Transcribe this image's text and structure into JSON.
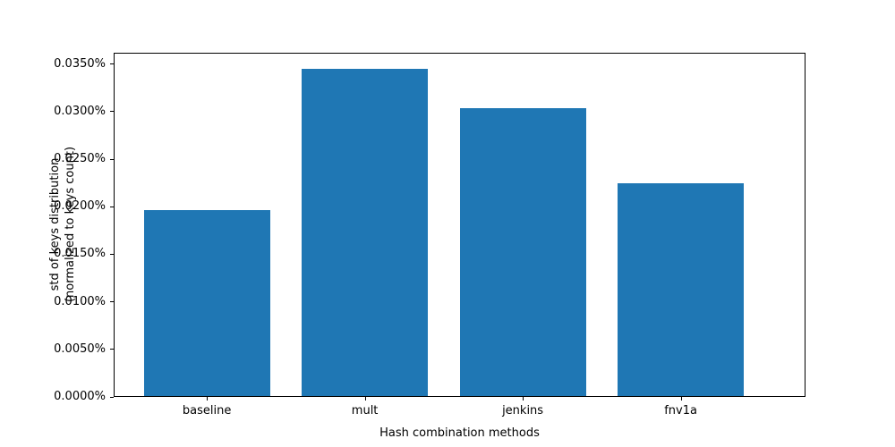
{
  "chart_data": {
    "type": "bar",
    "title": "",
    "categories": [
      "baseline",
      "mult",
      "jenkins",
      "fnv1a"
    ],
    "values": [
      0.0196,
      0.0344,
      0.0303,
      0.0224
    ],
    "value_unit": "percent",
    "xlabel": "Hash combination methods",
    "ylabel_lines": [
      "std of keys distribution",
      "(normalized to keys count)"
    ],
    "ylim": [
      0,
      0.0362
    ],
    "ytick_values": [
      0.0,
      0.005,
      0.01,
      0.015,
      0.02,
      0.025,
      0.03,
      0.035
    ],
    "ytick_labels": [
      "0.0000%",
      "0.0050%",
      "0.0100%",
      "0.0150%",
      "0.0200%",
      "0.0250%",
      "0.0300%",
      "0.0350%"
    ],
    "bar_color": "#1f77b4",
    "axis_color": "#000000",
    "grid": false,
    "legend": null
  }
}
